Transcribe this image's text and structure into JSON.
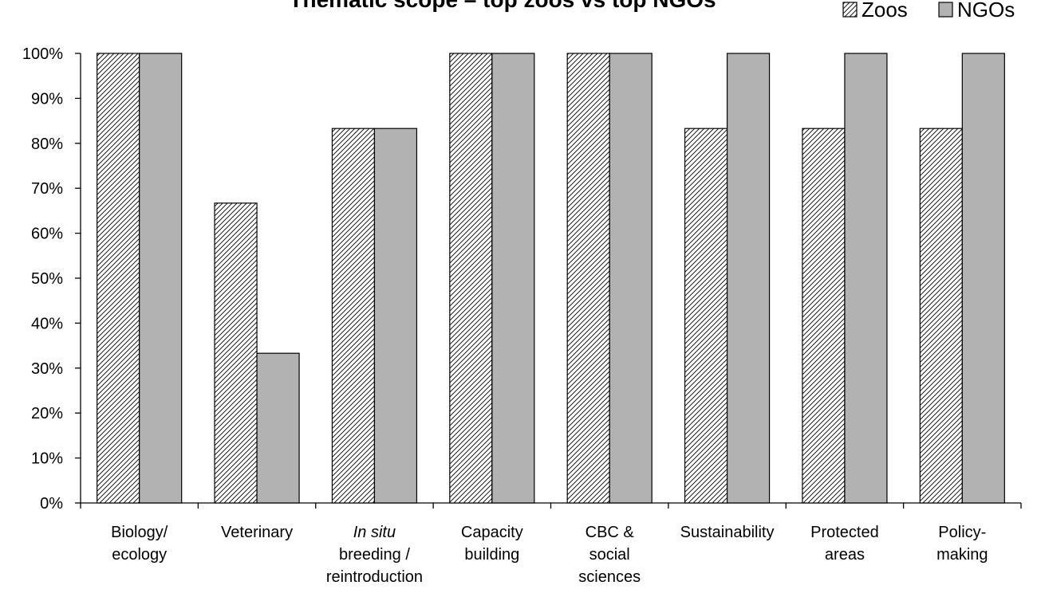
{
  "chart_data": {
    "type": "bar",
    "title": "Thematic scope – top zoos vs top NGOs",
    "xlabel": "",
    "ylabel": "",
    "ylim": [
      0,
      100
    ],
    "yticks": [
      0,
      10,
      20,
      30,
      40,
      50,
      60,
      70,
      80,
      90,
      100
    ],
    "ytick_suffix": "%",
    "grid": false,
    "legend_position": "top-right",
    "categories": [
      {
        "lines": [
          "Biology/",
          "ecology"
        ],
        "italic_first_line": false
      },
      {
        "lines": [
          "Veterinary"
        ],
        "italic_first_line": false
      },
      {
        "lines": [
          "In situ",
          "breeding /",
          "reintroduction"
        ],
        "italic_first_line": true
      },
      {
        "lines": [
          "Capacity",
          "building"
        ],
        "italic_first_line": false
      },
      {
        "lines": [
          "CBC &",
          "social",
          "sciences"
        ],
        "italic_first_line": false
      },
      {
        "lines": [
          "Sustainability"
        ],
        "italic_first_line": false
      },
      {
        "lines": [
          "Protected",
          "areas"
        ],
        "italic_first_line": false
      },
      {
        "lines": [
          "Policy-",
          "making"
        ],
        "italic_first_line": false
      }
    ],
    "series": [
      {
        "name": "Zoos",
        "pattern": "diagonal-hatch",
        "color": "#ffffff",
        "values": [
          100,
          66.7,
          83.3,
          100,
          100,
          83.3,
          83.3,
          83.3
        ]
      },
      {
        "name": "NGOs",
        "pattern": "solid",
        "color": "#b2b2b2",
        "values": [
          100,
          33.3,
          83.3,
          100,
          100,
          100,
          100,
          100
        ]
      }
    ]
  }
}
